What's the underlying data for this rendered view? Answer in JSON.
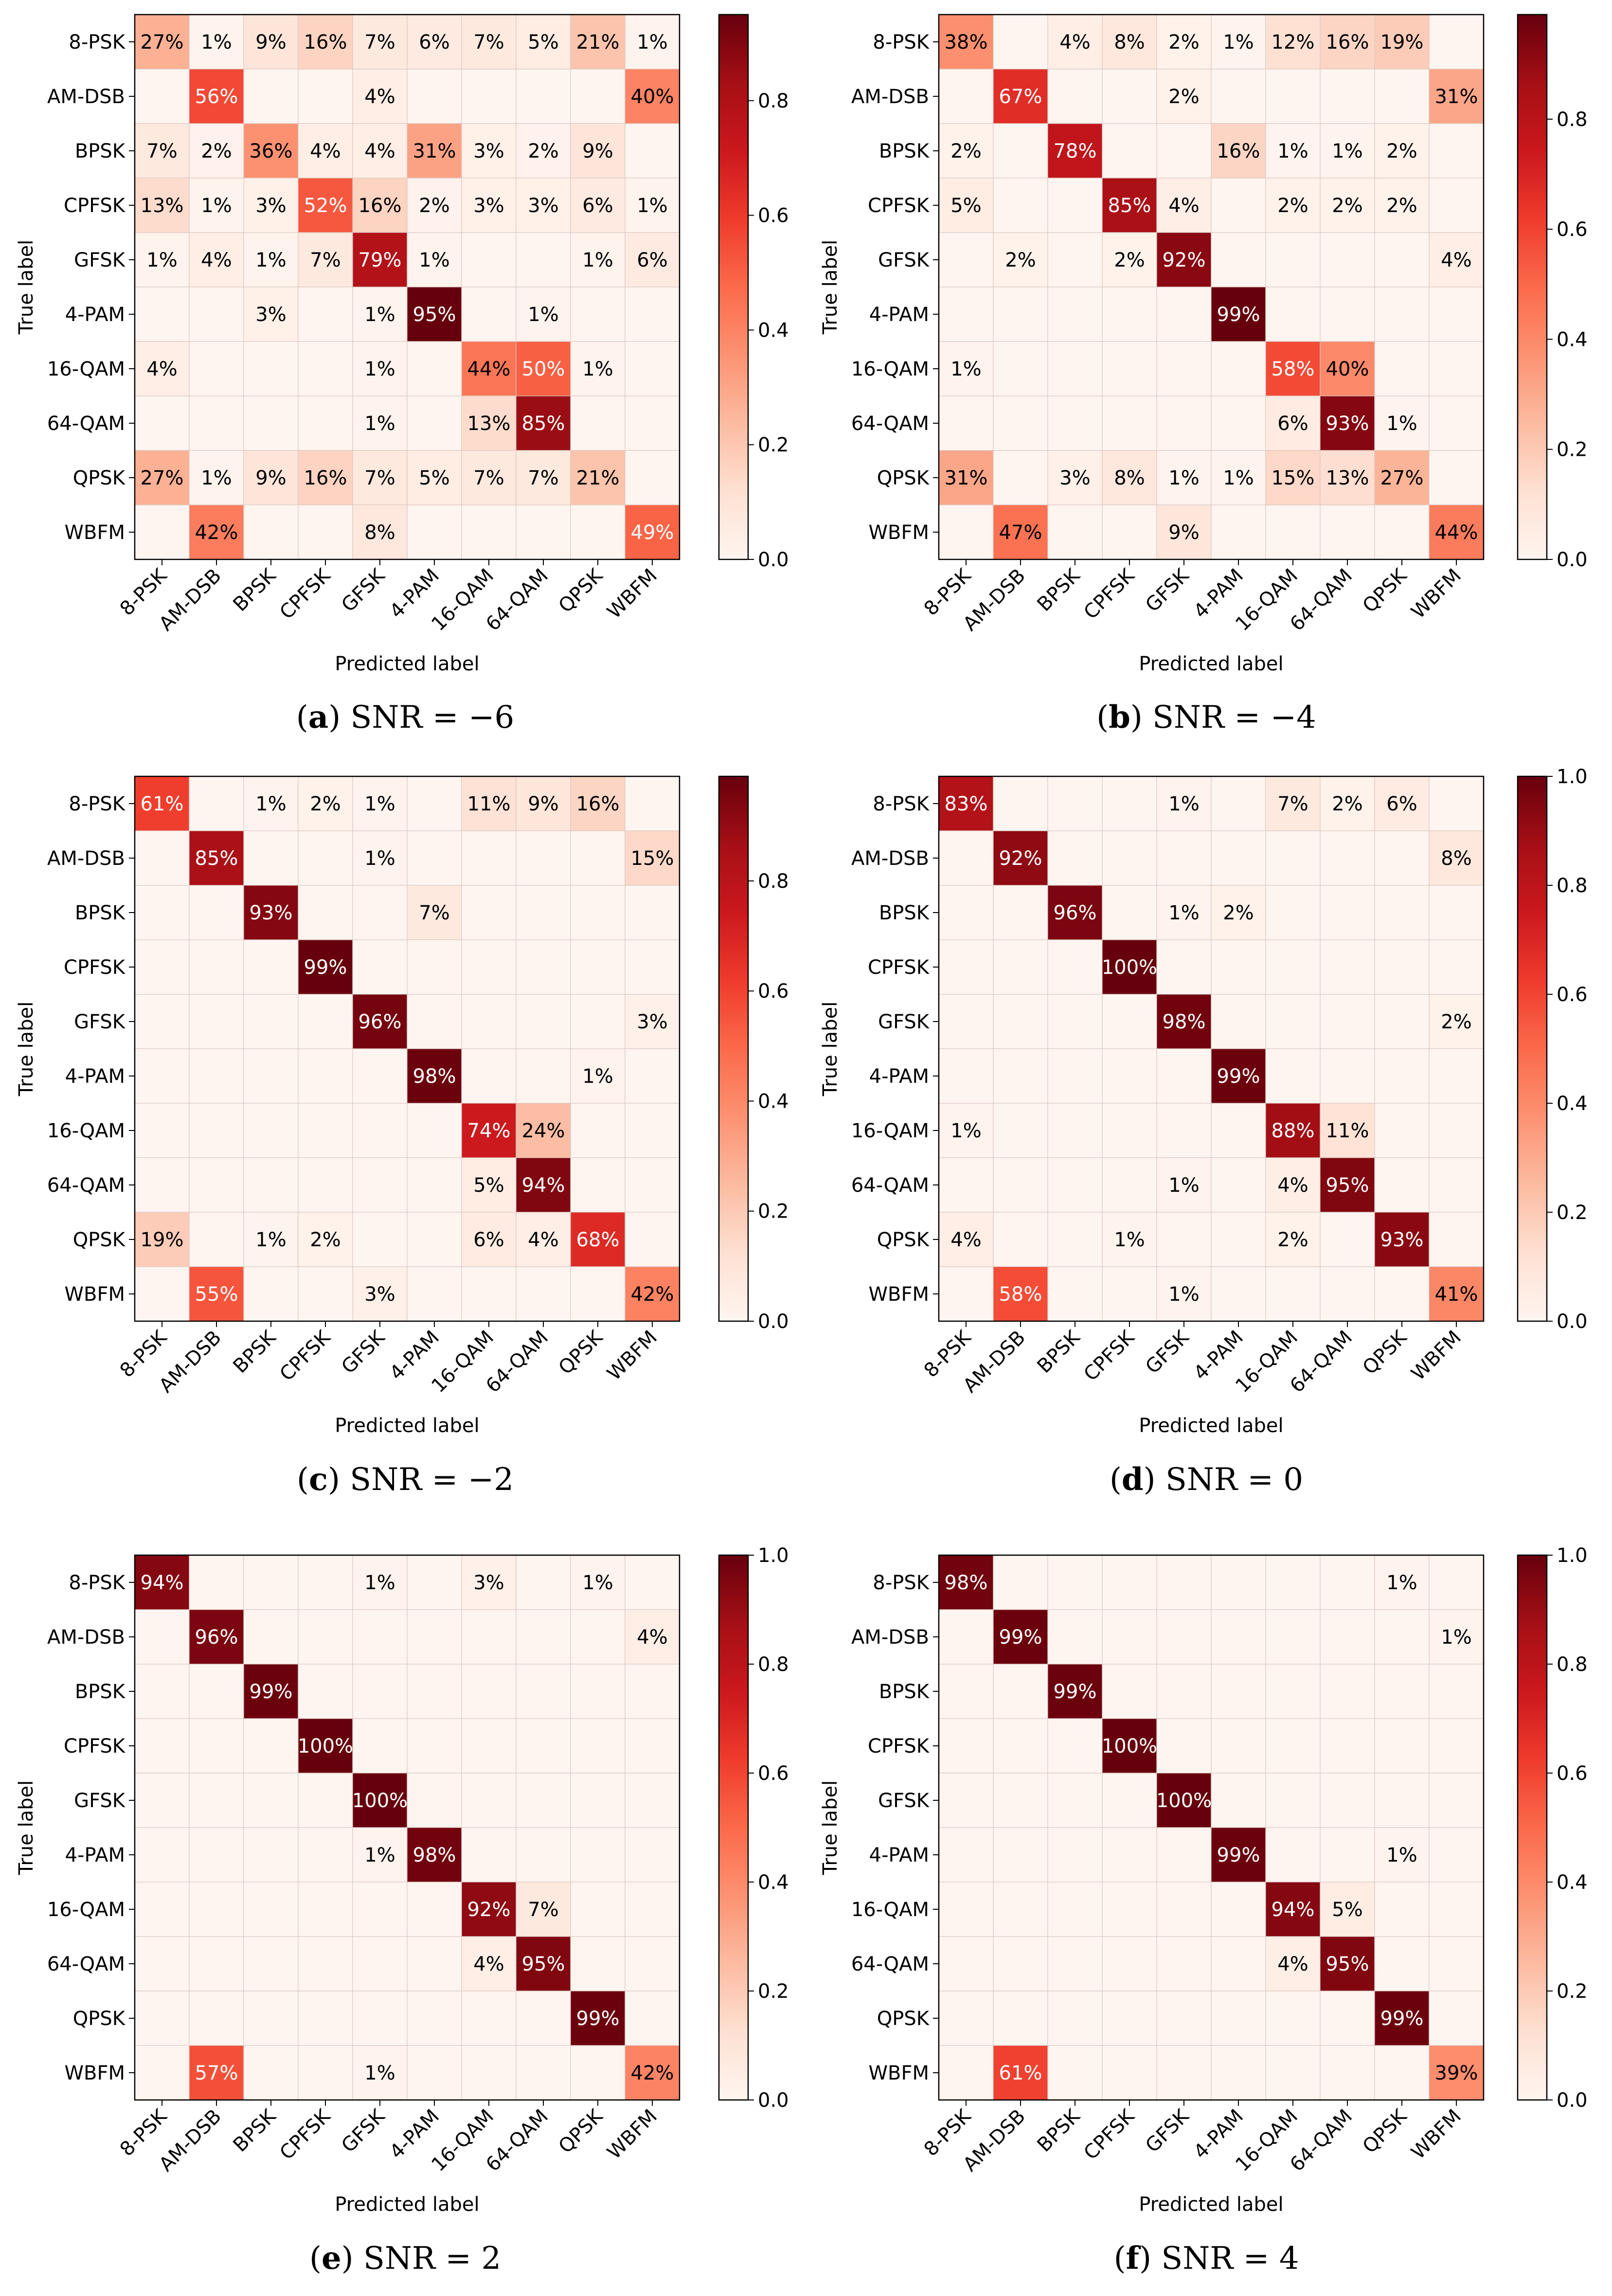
{
  "chart_data": [
    {
      "type": "heatmap",
      "panel": "a",
      "caption_label": "a",
      "caption_text": " SNR = −6",
      "xlabel": "Predicted label",
      "ylabel": "True label",
      "labels": [
        "8-PSK",
        "AM-DSB",
        "BPSK",
        "CPFSK",
        "GFSK",
        "4-PAM",
        "16-QAM",
        "64-QAM",
        "QPSK",
        "WBFM"
      ],
      "colorbar_max": 0.95,
      "colorbar_ticks": [
        "0.0",
        "0.2",
        "0.4",
        "0.6",
        "0.8"
      ],
      "colorbar_tick_values": [
        0.0,
        0.2,
        0.4,
        0.6,
        0.8
      ],
      "values": [
        [
          27,
          1,
          9,
          16,
          7,
          6,
          7,
          5,
          21,
          1
        ],
        [
          0,
          56,
          0,
          0,
          4,
          0,
          0,
          0,
          0,
          40
        ],
        [
          7,
          2,
          36,
          4,
          4,
          31,
          3,
          2,
          9,
          0
        ],
        [
          13,
          1,
          3,
          52,
          16,
          2,
          3,
          3,
          6,
          1
        ],
        [
          1,
          4,
          1,
          7,
          79,
          1,
          0,
          0,
          1,
          6
        ],
        [
          0,
          0,
          3,
          0,
          1,
          95,
          0,
          1,
          0,
          0
        ],
        [
          4,
          0,
          0,
          0,
          1,
          0,
          44,
          50,
          1,
          0
        ],
        [
          0,
          0,
          0,
          0,
          1,
          0,
          13,
          85,
          0,
          0
        ],
        [
          27,
          1,
          9,
          16,
          7,
          5,
          7,
          7,
          21,
          0
        ],
        [
          0,
          42,
          0,
          0,
          8,
          0,
          0,
          0,
          0,
          49
        ]
      ]
    },
    {
      "type": "heatmap",
      "panel": "b",
      "caption_label": "b",
      "caption_text": " SNR = −4",
      "xlabel": "Predicted label",
      "ylabel": "True label",
      "labels": [
        "8-PSK",
        "AM-DSB",
        "BPSK",
        "CPFSK",
        "GFSK",
        "4-PAM",
        "16-QAM",
        "64-QAM",
        "QPSK",
        "WBFM"
      ],
      "colorbar_max": 0.99,
      "colorbar_ticks": [
        "0.0",
        "0.2",
        "0.4",
        "0.6",
        "0.8"
      ],
      "colorbar_tick_values": [
        0.0,
        0.2,
        0.4,
        0.6,
        0.8
      ],
      "values": [
        [
          38,
          0,
          4,
          8,
          2,
          1,
          12,
          16,
          19,
          0
        ],
        [
          0,
          67,
          0,
          0,
          2,
          0,
          0,
          0,
          0,
          31
        ],
        [
          2,
          0,
          78,
          0,
          0,
          16,
          1,
          1,
          2,
          0
        ],
        [
          5,
          0,
          0,
          85,
          4,
          0,
          2,
          2,
          2,
          0
        ],
        [
          0,
          2,
          0,
          2,
          92,
          0,
          0,
          0,
          0,
          4
        ],
        [
          0,
          0,
          0,
          0,
          0,
          99,
          0,
          0,
          0,
          0
        ],
        [
          1,
          0,
          0,
          0,
          0,
          0,
          58,
          40,
          0,
          0
        ],
        [
          0,
          0,
          0,
          0,
          0,
          0,
          6,
          93,
          1,
          0
        ],
        [
          31,
          0,
          3,
          8,
          1,
          1,
          15,
          13,
          27,
          0
        ],
        [
          0,
          47,
          0,
          0,
          9,
          0,
          0,
          0,
          0,
          44
        ]
      ]
    },
    {
      "type": "heatmap",
      "panel": "c",
      "caption_label": "c",
      "caption_text": " SNR = −2",
      "xlabel": "Predicted label",
      "ylabel": "True label",
      "labels": [
        "8-PSK",
        "AM-DSB",
        "BPSK",
        "CPFSK",
        "GFSK",
        "4-PAM",
        "16-QAM",
        "64-QAM",
        "QPSK",
        "WBFM"
      ],
      "colorbar_max": 0.99,
      "colorbar_ticks": [
        "0.0",
        "0.2",
        "0.4",
        "0.6",
        "0.8"
      ],
      "colorbar_tick_values": [
        0.0,
        0.2,
        0.4,
        0.6,
        0.8
      ],
      "values": [
        [
          61,
          0,
          1,
          2,
          1,
          0,
          11,
          9,
          16,
          0
        ],
        [
          0,
          85,
          0,
          0,
          1,
          0,
          0,
          0,
          0,
          15
        ],
        [
          0,
          0,
          93,
          0,
          0,
          7,
          0,
          0,
          0,
          0
        ],
        [
          0,
          0,
          0,
          99,
          0,
          0,
          0,
          0,
          0,
          0
        ],
        [
          0,
          0,
          0,
          0,
          96,
          0,
          0,
          0,
          0,
          3
        ],
        [
          0,
          0,
          0,
          0,
          0,
          98,
          0,
          0,
          1,
          0
        ],
        [
          0,
          0,
          0,
          0,
          0,
          0,
          74,
          24,
          0,
          0
        ],
        [
          0,
          0,
          0,
          0,
          0,
          0,
          5,
          94,
          0,
          0
        ],
        [
          19,
          0,
          1,
          2,
          0,
          0,
          6,
          4,
          68,
          0
        ],
        [
          0,
          55,
          0,
          0,
          3,
          0,
          0,
          0,
          0,
          42
        ]
      ]
    },
    {
      "type": "heatmap",
      "panel": "d",
      "caption_label": "d",
      "caption_text": " SNR = 0",
      "xlabel": "Predicted label",
      "ylabel": "True label",
      "labels": [
        "8-PSK",
        "AM-DSB",
        "BPSK",
        "CPFSK",
        "GFSK",
        "4-PAM",
        "16-QAM",
        "64-QAM",
        "QPSK",
        "WBFM"
      ],
      "colorbar_max": 1.0,
      "colorbar_ticks": [
        "0.0",
        "0.2",
        "0.4",
        "0.6",
        "0.8",
        "1.0"
      ],
      "colorbar_tick_values": [
        0.0,
        0.2,
        0.4,
        0.6,
        0.8,
        1.0
      ],
      "values": [
        [
          83,
          0,
          0,
          0,
          1,
          0,
          7,
          2,
          6,
          0
        ],
        [
          0,
          92,
          0,
          0,
          0,
          0,
          0,
          0,
          0,
          8
        ],
        [
          0,
          0,
          96,
          0,
          1,
          2,
          0,
          0,
          0,
          0
        ],
        [
          0,
          0,
          0,
          100,
          0,
          0,
          0,
          0,
          0,
          0
        ],
        [
          0,
          0,
          0,
          0,
          98,
          0,
          0,
          0,
          0,
          2
        ],
        [
          0,
          0,
          0,
          0,
          0,
          99,
          0,
          0,
          0,
          0
        ],
        [
          1,
          0,
          0,
          0,
          0,
          0,
          88,
          11,
          0,
          0
        ],
        [
          0,
          0,
          0,
          0,
          1,
          0,
          4,
          95,
          0,
          0
        ],
        [
          4,
          0,
          0,
          1,
          0,
          0,
          2,
          0,
          93,
          0
        ],
        [
          0,
          58,
          0,
          0,
          1,
          0,
          0,
          0,
          0,
          41
        ]
      ]
    },
    {
      "type": "heatmap",
      "panel": "e",
      "caption_label": "e",
      "caption_text": " SNR = 2",
      "xlabel": "Predicted label",
      "ylabel": "True label",
      "labels": [
        "8-PSK",
        "AM-DSB",
        "BPSK",
        "CPFSK",
        "GFSK",
        "4-PAM",
        "16-QAM",
        "64-QAM",
        "QPSK",
        "WBFM"
      ],
      "colorbar_max": 1.0,
      "colorbar_ticks": [
        "0.0",
        "0.2",
        "0.4",
        "0.6",
        "0.8",
        "1.0"
      ],
      "colorbar_tick_values": [
        0.0,
        0.2,
        0.4,
        0.6,
        0.8,
        1.0
      ],
      "values": [
        [
          94,
          0,
          0,
          0,
          1,
          0,
          3,
          0,
          1,
          0
        ],
        [
          0,
          96,
          0,
          0,
          0,
          0,
          0,
          0,
          0,
          4
        ],
        [
          0,
          0,
          99,
          0,
          0,
          0,
          0,
          0,
          0,
          0
        ],
        [
          0,
          0,
          0,
          100,
          0,
          0,
          0,
          0,
          0,
          0
        ],
        [
          0,
          0,
          0,
          0,
          100,
          0,
          0,
          0,
          0,
          0
        ],
        [
          0,
          0,
          0,
          0,
          1,
          98,
          0,
          0,
          0,
          0
        ],
        [
          0,
          0,
          0,
          0,
          0,
          0,
          92,
          7,
          0,
          0
        ],
        [
          0,
          0,
          0,
          0,
          0,
          0,
          4,
          95,
          0,
          0
        ],
        [
          0,
          0,
          0,
          0,
          0,
          0,
          0,
          0,
          99,
          0
        ],
        [
          0,
          57,
          0,
          0,
          1,
          0,
          0,
          0,
          0,
          42
        ]
      ]
    },
    {
      "type": "heatmap",
      "panel": "f",
      "caption_label": "f",
      "caption_text": " SNR = 4",
      "xlabel": "Predicted label",
      "ylabel": "True label",
      "labels": [
        "8-PSK",
        "AM-DSB",
        "BPSK",
        "CPFSK",
        "GFSK",
        "4-PAM",
        "16-QAM",
        "64-QAM",
        "QPSK",
        "WBFM"
      ],
      "colorbar_max": 1.0,
      "colorbar_ticks": [
        "0.0",
        "0.2",
        "0.4",
        "0.6",
        "0.8",
        "1.0"
      ],
      "colorbar_tick_values": [
        0.0,
        0.2,
        0.4,
        0.6,
        0.8,
        1.0
      ],
      "values": [
        [
          98,
          0,
          0,
          0,
          0,
          0,
          0,
          0,
          1,
          0
        ],
        [
          0,
          99,
          0,
          0,
          0,
          0,
          0,
          0,
          0,
          1
        ],
        [
          0,
          0,
          99,
          0,
          0,
          0,
          0,
          0,
          0,
          0
        ],
        [
          0,
          0,
          0,
          100,
          0,
          0,
          0,
          0,
          0,
          0
        ],
        [
          0,
          0,
          0,
          0,
          100,
          0,
          0,
          0,
          0,
          0
        ],
        [
          0,
          0,
          0,
          0,
          0,
          99,
          0,
          0,
          1,
          0
        ],
        [
          0,
          0,
          0,
          0,
          0,
          0,
          94,
          5,
          0,
          0
        ],
        [
          0,
          0,
          0,
          0,
          0,
          0,
          4,
          95,
          0,
          0
        ],
        [
          0,
          0,
          0,
          0,
          0,
          0,
          0,
          0,
          99,
          0
        ],
        [
          0,
          61,
          0,
          0,
          0,
          0,
          0,
          0,
          0,
          39
        ]
      ]
    }
  ]
}
